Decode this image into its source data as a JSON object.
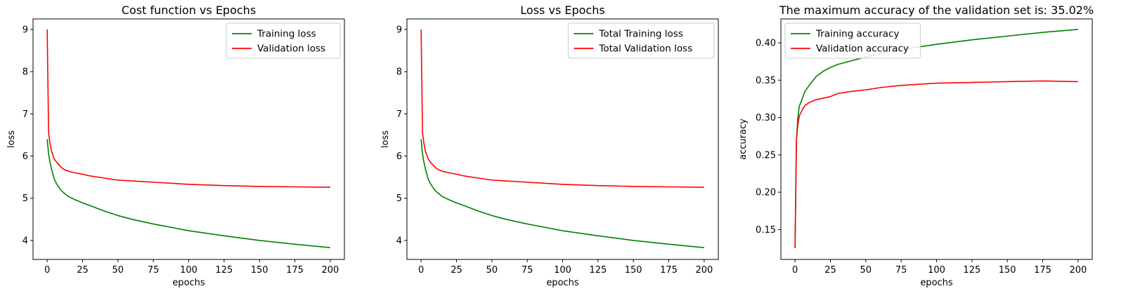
{
  "figure": {
    "background": "#ffffff"
  },
  "chart_data": [
    {
      "type": "line",
      "title": "Cost function vs Epochs",
      "xlabel": "epochs",
      "ylabel": "loss",
      "xlim": [
        -10,
        210
      ],
      "ylim": [
        3.55,
        9.25
      ],
      "xticks": [
        0,
        25,
        50,
        75,
        100,
        125,
        150,
        175,
        200
      ],
      "yticks": [
        4,
        5,
        6,
        7,
        8,
        9
      ],
      "grid": false,
      "legend_position": "upper right",
      "series": [
        {
          "name": "Training loss",
          "color": "#008000",
          "x": [
            0,
            1,
            2,
            3,
            5,
            7,
            10,
            12,
            15,
            20,
            25,
            30,
            40,
            50,
            60,
            75,
            100,
            125,
            150,
            175,
            200
          ],
          "y": [
            6.4,
            6.05,
            5.85,
            5.7,
            5.45,
            5.32,
            5.18,
            5.12,
            5.04,
            4.96,
            4.89,
            4.83,
            4.7,
            4.59,
            4.5,
            4.39,
            4.23,
            4.11,
            4.0,
            3.91,
            3.83
          ]
        },
        {
          "name": "Validation loss",
          "color": "#ff0000",
          "x": [
            0,
            1,
            2,
            3,
            5,
            7,
            10,
            12,
            15,
            20,
            25,
            30,
            40,
            50,
            60,
            75,
            100,
            125,
            150,
            175,
            200
          ],
          "y": [
            9.0,
            6.55,
            6.3,
            6.12,
            5.93,
            5.84,
            5.73,
            5.68,
            5.64,
            5.6,
            5.57,
            5.53,
            5.48,
            5.43,
            5.41,
            5.38,
            5.33,
            5.3,
            5.28,
            5.27,
            5.26
          ]
        }
      ]
    },
    {
      "type": "line",
      "title": "Loss vs Epochs",
      "xlabel": "epochs",
      "ylabel": "loss",
      "xlim": [
        -10,
        210
      ],
      "ylim": [
        3.55,
        9.25
      ],
      "xticks": [
        0,
        25,
        50,
        75,
        100,
        125,
        150,
        175,
        200
      ],
      "yticks": [
        4,
        5,
        6,
        7,
        8,
        9
      ],
      "grid": false,
      "legend_position": "upper right",
      "series": [
        {
          "name": "Total Training loss",
          "color": "#008000",
          "x": [
            0,
            1,
            2,
            3,
            5,
            7,
            10,
            12,
            15,
            20,
            25,
            30,
            40,
            50,
            60,
            75,
            100,
            125,
            150,
            175,
            200
          ],
          "y": [
            6.4,
            6.05,
            5.85,
            5.7,
            5.45,
            5.32,
            5.18,
            5.12,
            5.04,
            4.96,
            4.89,
            4.83,
            4.7,
            4.59,
            4.5,
            4.39,
            4.23,
            4.11,
            4.0,
            3.91,
            3.83
          ]
        },
        {
          "name": "Total Validation loss",
          "color": "#ff0000",
          "x": [
            0,
            1,
            2,
            3,
            5,
            7,
            10,
            12,
            15,
            20,
            25,
            30,
            40,
            50,
            60,
            75,
            100,
            125,
            150,
            175,
            200
          ],
          "y": [
            9.0,
            6.55,
            6.3,
            6.12,
            5.93,
            5.84,
            5.73,
            5.68,
            5.64,
            5.6,
            5.57,
            5.53,
            5.48,
            5.43,
            5.41,
            5.38,
            5.33,
            5.3,
            5.28,
            5.27,
            5.26
          ]
        }
      ]
    },
    {
      "type": "line",
      "title": "The maximum accuracy of the validation set is: 35.02%",
      "xlabel": "epochs",
      "ylabel": "accuracy",
      "xlim": [
        -10,
        210
      ],
      "ylim": [
        0.11,
        0.432
      ],
      "xticks": [
        0,
        25,
        50,
        75,
        100,
        125,
        150,
        175,
        200
      ],
      "yticks": [
        0.15,
        0.2,
        0.25,
        0.3,
        0.35,
        0.4
      ],
      "grid": false,
      "legend_position": "upper left",
      "series": [
        {
          "name": "Training accuracy",
          "color": "#008000",
          "x": [
            0,
            1,
            2,
            3,
            4,
            5,
            7,
            10,
            15,
            20,
            25,
            30,
            40,
            50,
            60,
            75,
            100,
            125,
            150,
            175,
            200
          ],
          "y": [
            0.125,
            0.27,
            0.3,
            0.315,
            0.32,
            0.325,
            0.335,
            0.343,
            0.355,
            0.362,
            0.367,
            0.371,
            0.376,
            0.381,
            0.386,
            0.391,
            0.398,
            0.404,
            0.409,
            0.414,
            0.418
          ]
        },
        {
          "name": "Validation accuracy",
          "color": "#ff0000",
          "x": [
            0,
            1,
            2,
            3,
            5,
            7,
            10,
            15,
            20,
            25,
            30,
            40,
            50,
            60,
            75,
            100,
            125,
            150,
            175,
            200
          ],
          "y": [
            0.125,
            0.27,
            0.29,
            0.302,
            0.31,
            0.316,
            0.32,
            0.324,
            0.326,
            0.328,
            0.332,
            0.335,
            0.337,
            0.34,
            0.343,
            0.346,
            0.347,
            0.348,
            0.349,
            0.348
          ]
        }
      ]
    }
  ]
}
